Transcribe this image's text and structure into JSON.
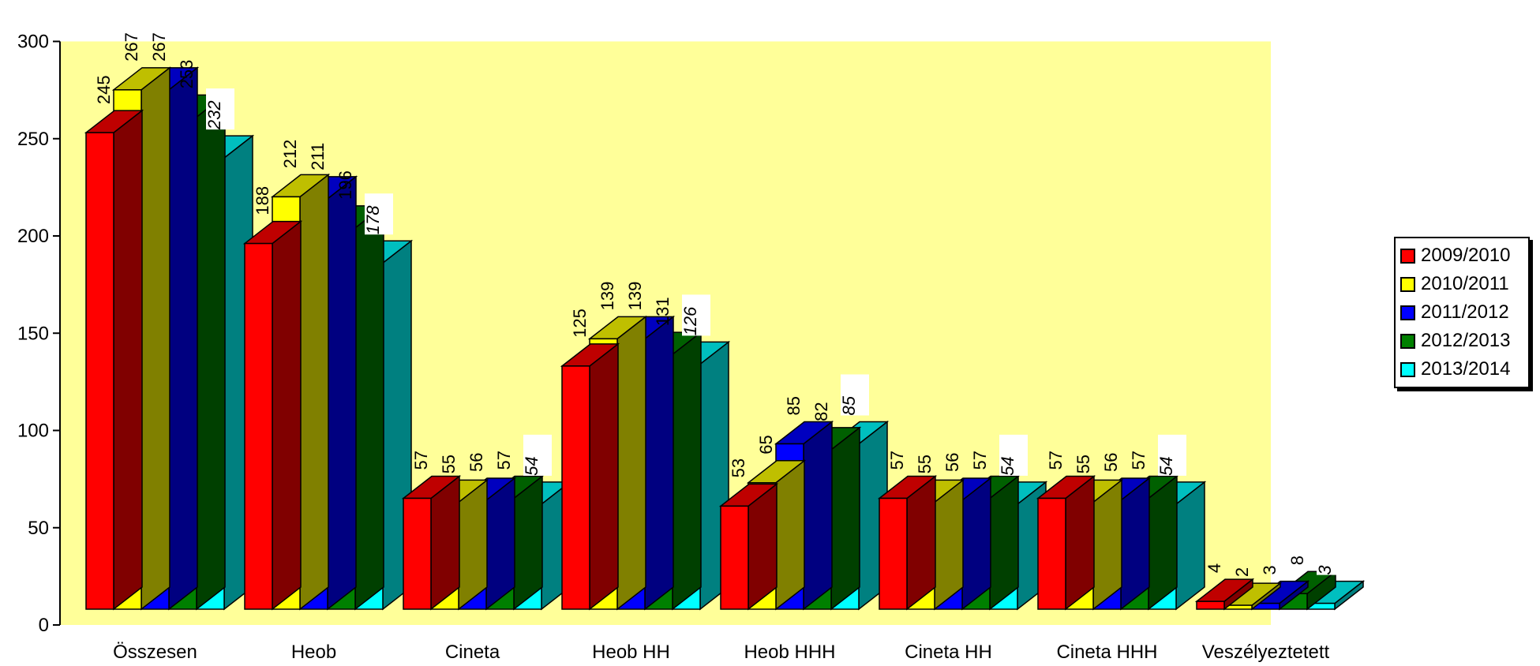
{
  "chart_data": {
    "type": "bar",
    "title": "",
    "xlabel": "",
    "ylabel": "",
    "ylim": [
      0,
      300
    ],
    "yticks": [
      0,
      50,
      100,
      150,
      200,
      250,
      300
    ],
    "grid": false,
    "legend_placement": "right",
    "background_color": "#FFFF99",
    "categories": [
      "Összesen",
      "Heob",
      "Cineta",
      "Heob HH",
      "Heob HHH",
      "Cineta HH",
      "Cineta HHH",
      "Veszélyeztetett"
    ],
    "series": [
      {
        "name": "2009/2010",
        "color": "#FF0000",
        "values": [
          245,
          188,
          57,
          125,
          53,
          57,
          57,
          4
        ]
      },
      {
        "name": "2010/2011",
        "color": "#FFFF00",
        "values": [
          267,
          212,
          55,
          139,
          65,
          55,
          55,
          2
        ]
      },
      {
        "name": "2011/2012",
        "color": "#0000FF",
        "values": [
          267,
          211,
          56,
          139,
          85,
          56,
          56,
          3
        ]
      },
      {
        "name": "2012/2013",
        "color": "#008000",
        "values": [
          253,
          196,
          57,
          131,
          82,
          57,
          57,
          8
        ]
      },
      {
        "name": "2013/2014",
        "color": "#00FFFF",
        "values": [
          232,
          178,
          54,
          126,
          85,
          54,
          54,
          3
        ]
      }
    ]
  }
}
